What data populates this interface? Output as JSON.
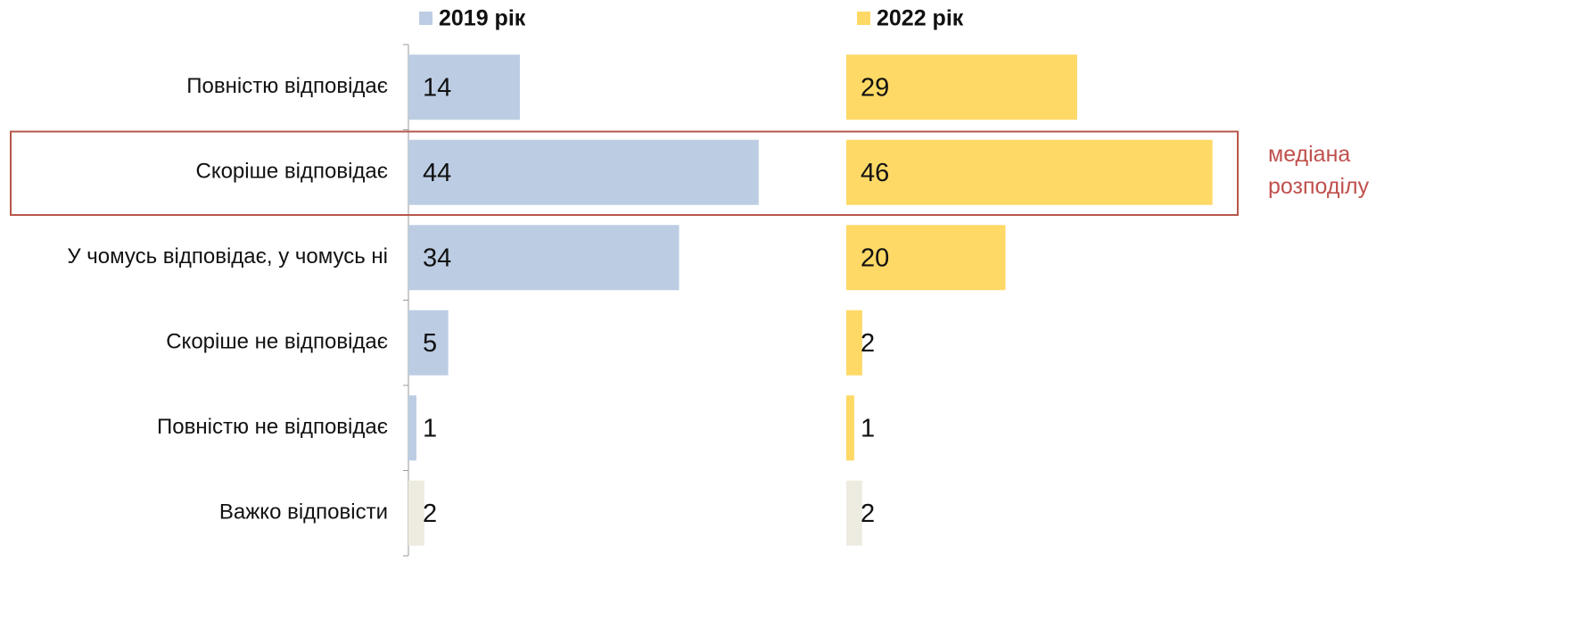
{
  "chart_data": {
    "type": "bar",
    "categories": [
      "Повністю відповідає",
      "Скоріше відповідає",
      "У чомусь відповідає, у чомусь ні",
      "Скоріше не відповідає",
      "Повністю не відповідає",
      "Важко відповісти"
    ],
    "series": [
      {
        "name": "2019 рік",
        "color": "#bccde3",
        "colors": [
          "#bccde3",
          "#bccde3",
          "#bccde3",
          "#bccde3",
          "#bccde3",
          "#eeebe0"
        ],
        "values": [
          14,
          44,
          34,
          5,
          1,
          2
        ]
      },
      {
        "name": "2022 рік",
        "color": "#fed966",
        "colors": [
          "#fed966",
          "#fed966",
          "#fed966",
          "#fed966",
          "#fed966",
          "#eeebe0"
        ],
        "values": [
          29,
          46,
          20,
          2,
          1,
          2
        ]
      }
    ],
    "xlim": [
      0,
      55
    ],
    "annotation": {
      "lines": [
        "медіана",
        "розподілу"
      ],
      "category": "Скоріше відповідає",
      "color": "#b5574b"
    }
  }
}
